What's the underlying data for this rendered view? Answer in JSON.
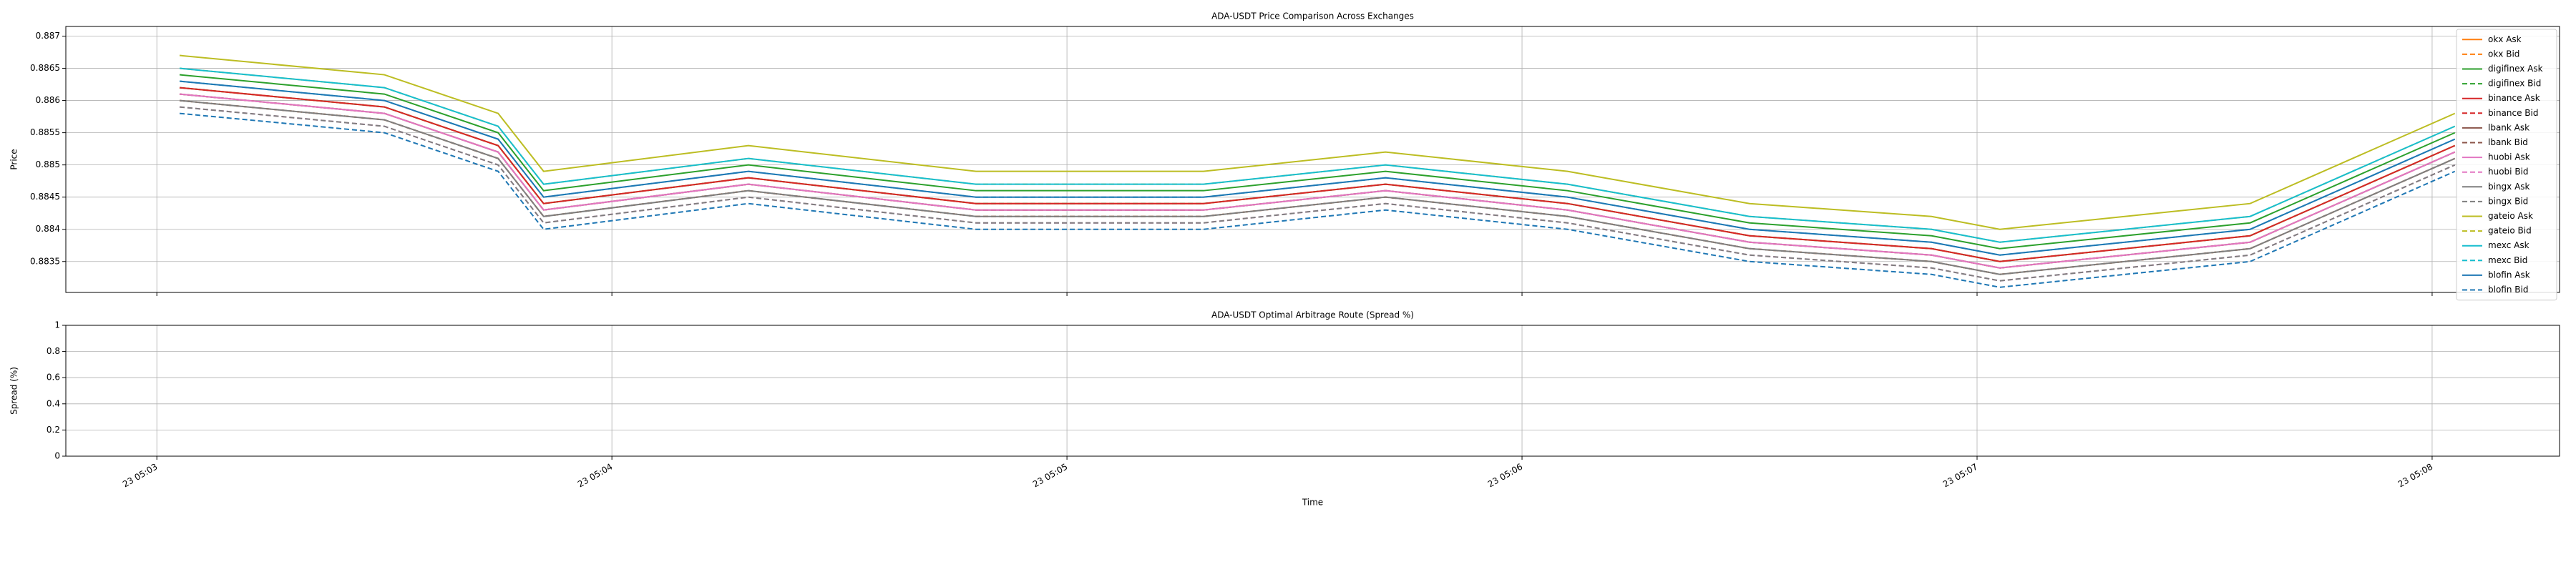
{
  "chart_data": [
    {
      "type": "line",
      "title": "ADA-USDT Price Comparison Across Exchanges",
      "y_label": "Price",
      "x": [
        3.05,
        3.5,
        3.75,
        3.85,
        4.3,
        4.8,
        5.3,
        5.7,
        6.1,
        6.5,
        6.9,
        7.05,
        7.6,
        8.05
      ],
      "xlim": [
        2.8,
        8.28
      ],
      "xticks": [
        3,
        4,
        5,
        6,
        7,
        8
      ],
      "ylim": [
        0.88302,
        0.88715
      ],
      "yticks": [
        0.8835,
        0.884,
        0.8845,
        0.885,
        0.8855,
        0.886,
        0.8865,
        0.887
      ],
      "grid": true,
      "legend": "upper right",
      "series": [
        {
          "name": "okx Ask",
          "color": "#ff7f0e",
          "style": "solid",
          "values": [
            0.8862,
            0.8859,
            0.8853,
            0.8844,
            0.8848,
            0.8844,
            0.8844,
            0.8847,
            0.8844,
            0.8839,
            0.8837,
            0.8835,
            0.8839,
            0.8853
          ]
        },
        {
          "name": "okx Bid",
          "color": "#ff7f0e",
          "style": "dashed",
          "values": [
            0.886,
            0.8857,
            0.8851,
            0.8842,
            0.8846,
            0.8842,
            0.8842,
            0.8845,
            0.8842,
            0.8837,
            0.8835,
            0.8833,
            0.8837,
            0.8851
          ]
        },
        {
          "name": "digifinex Ask",
          "color": "#2ca02c",
          "style": "solid",
          "values": [
            0.8864,
            0.8861,
            0.8855,
            0.8846,
            0.885,
            0.8846,
            0.8846,
            0.8849,
            0.8846,
            0.8841,
            0.8839,
            0.8837,
            0.8841,
            0.8855
          ]
        },
        {
          "name": "digifinex Bid",
          "color": "#2ca02c",
          "style": "dashed",
          "values": [
            0.8862,
            0.8859,
            0.8853,
            0.8844,
            0.8848,
            0.8844,
            0.8844,
            0.8847,
            0.8844,
            0.8839,
            0.8837,
            0.8835,
            0.8839,
            0.8853
          ]
        },
        {
          "name": "binance Ask",
          "color": "#d62728",
          "style": "solid",
          "values": [
            0.8862,
            0.8859,
            0.8853,
            0.8844,
            0.8848,
            0.8844,
            0.8844,
            0.8847,
            0.8844,
            0.8839,
            0.8837,
            0.8835,
            0.8839,
            0.8853
          ]
        },
        {
          "name": "binance Bid",
          "color": "#d62728",
          "style": "dashed",
          "values": [
            0.8861,
            0.8858,
            0.8852,
            0.8843,
            0.8847,
            0.8843,
            0.8843,
            0.8846,
            0.8843,
            0.8838,
            0.8836,
            0.8834,
            0.8838,
            0.8852
          ]
        },
        {
          "name": "lbank Ask",
          "color": "#8c564b",
          "style": "solid",
          "values": [
            0.8861,
            0.8858,
            0.8852,
            0.8843,
            0.8847,
            0.8843,
            0.8843,
            0.8846,
            0.8843,
            0.8838,
            0.8836,
            0.8834,
            0.8838,
            0.8852
          ]
        },
        {
          "name": "lbank Bid",
          "color": "#8c564b",
          "style": "dashed",
          "values": [
            0.886,
            0.8857,
            0.8851,
            0.8842,
            0.8846,
            0.8842,
            0.8842,
            0.8845,
            0.8842,
            0.8837,
            0.8835,
            0.8833,
            0.8837,
            0.8851
          ]
        },
        {
          "name": "huobi Ask",
          "color": "#e377c2",
          "style": "solid",
          "values": [
            0.8861,
            0.8858,
            0.8852,
            0.8843,
            0.8847,
            0.8843,
            0.8843,
            0.8846,
            0.8843,
            0.8838,
            0.8836,
            0.8834,
            0.8838,
            0.8852
          ]
        },
        {
          "name": "huobi Bid",
          "color": "#e377c2",
          "style": "dashed",
          "values": [
            0.8859,
            0.8856,
            0.885,
            0.8841,
            0.8845,
            0.8841,
            0.8841,
            0.8844,
            0.8841,
            0.8836,
            0.8834,
            0.8832,
            0.8836,
            0.885
          ]
        },
        {
          "name": "bingx Ask",
          "color": "#7f7f7f",
          "style": "solid",
          "values": [
            0.886,
            0.8857,
            0.8851,
            0.8842,
            0.8846,
            0.8842,
            0.8842,
            0.8845,
            0.8842,
            0.8837,
            0.8835,
            0.8833,
            0.8837,
            0.8851
          ]
        },
        {
          "name": "bingx Bid",
          "color": "#7f7f7f",
          "style": "dashed",
          "values": [
            0.8859,
            0.8856,
            0.885,
            0.8841,
            0.8845,
            0.8841,
            0.8841,
            0.8844,
            0.8841,
            0.8836,
            0.8834,
            0.8832,
            0.8836,
            0.885
          ]
        },
        {
          "name": "gateio Ask",
          "color": "#bcbd22",
          "style": "solid",
          "values": [
            0.8867,
            0.8864,
            0.8858,
            0.8849,
            0.8853,
            0.8849,
            0.8849,
            0.8852,
            0.8849,
            0.8844,
            0.8842,
            0.884,
            0.8844,
            0.8858
          ]
        },
        {
          "name": "gateio Bid",
          "color": "#bcbd22",
          "style": "dashed",
          "values": [
            0.8865,
            0.8862,
            0.8856,
            0.8847,
            0.8851,
            0.8847,
            0.8847,
            0.885,
            0.8847,
            0.8842,
            0.884,
            0.8838,
            0.8842,
            0.8856
          ]
        },
        {
          "name": "mexc Ask",
          "color": "#17becf",
          "style": "solid",
          "values": [
            0.8865,
            0.8862,
            0.8856,
            0.8847,
            0.8851,
            0.8847,
            0.8847,
            0.885,
            0.8847,
            0.8842,
            0.884,
            0.8838,
            0.8842,
            0.8856
          ]
        },
        {
          "name": "mexc Bid",
          "color": "#17becf",
          "style": "dashed",
          "values": [
            0.8863,
            0.886,
            0.8854,
            0.8845,
            0.8849,
            0.8845,
            0.8845,
            0.8848,
            0.8845,
            0.884,
            0.8838,
            0.8836,
            0.884,
            0.8854
          ]
        },
        {
          "name": "blofin Ask",
          "color": "#1f77b4",
          "style": "solid",
          "values": [
            0.8863,
            0.886,
            0.8854,
            0.8845,
            0.8849,
            0.8845,
            0.8845,
            0.8848,
            0.8845,
            0.884,
            0.8838,
            0.8836,
            0.884,
            0.8854
          ]
        },
        {
          "name": "blofin Bid",
          "color": "#1f77b4",
          "style": "dashed",
          "values": [
            0.8858,
            0.8855,
            0.8849,
            0.884,
            0.8844,
            0.884,
            0.884,
            0.8843,
            0.884,
            0.8835,
            0.8833,
            0.8831,
            0.8835,
            0.8849
          ]
        }
      ]
    },
    {
      "type": "line",
      "title": "ADA-USDT Optimal Arbitrage Route (Spread %)",
      "y_label": "Spread (%)",
      "x_label": "Time",
      "xlim": [
        2.8,
        8.28
      ],
      "xticks": [
        {
          "value": 3,
          "label": "23 05:03"
        },
        {
          "value": 4,
          "label": "23 05:04"
        },
        {
          "value": 5,
          "label": "23 05:05"
        },
        {
          "value": 6,
          "label": "23 05:06"
        },
        {
          "value": 7,
          "label": "23 05:07"
        },
        {
          "value": 8,
          "label": "23 05:08"
        }
      ],
      "ylim": [
        0,
        1
      ],
      "yticks": [
        0,
        0.2,
        0.4,
        0.6,
        0.8,
        1.0
      ],
      "grid": true
    }
  ]
}
